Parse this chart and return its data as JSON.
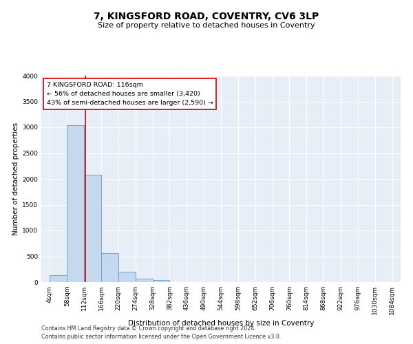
{
  "title": "7, KINGSFORD ROAD, COVENTRY, CV6 3LP",
  "subtitle": "Size of property relative to detached houses in Coventry",
  "xlabel": "Distribution of detached houses by size in Coventry",
  "ylabel": "Number of detached properties",
  "footnote1": "Contains HM Land Registry data © Crown copyright and database right 2024.",
  "footnote2": "Contains public sector information licensed under the Open Government Licence v3.0.",
  "annotation_line1": "7 KINGSFORD ROAD: 116sqm",
  "annotation_line2": "← 56% of detached houses are smaller (3,420)",
  "annotation_line3": "43% of semi-detached houses are larger (2,590) →",
  "property_size": 116,
  "bar_edges": [
    4,
    58,
    112,
    166,
    220,
    274,
    328,
    382,
    436,
    490,
    544,
    598,
    652,
    706,
    760,
    814,
    868,
    922,
    976,
    1030,
    1084
  ],
  "bar_values": [
    130,
    3040,
    2080,
    555,
    200,
    70,
    40,
    0,
    0,
    0,
    0,
    0,
    0,
    0,
    0,
    0,
    0,
    0,
    0,
    0
  ],
  "bar_color": "#c5d8ed",
  "bar_edge_color": "#5b9bd5",
  "vline_color": "#cc0000",
  "vline_x": 116,
  "annotation_box_color": "#cc0000",
  "background_color": "#e8eef7",
  "ylim": [
    0,
    4000
  ],
  "yticks": [
    0,
    500,
    1000,
    1500,
    2000,
    2500,
    3000,
    3500,
    4000
  ],
  "title_fontsize": 10,
  "subtitle_fontsize": 8,
  "ylabel_fontsize": 7.5,
  "xlabel_fontsize": 7.5,
  "tick_fontsize": 6.5,
  "annotation_fontsize": 6.8,
  "footnote_fontsize": 5.8
}
